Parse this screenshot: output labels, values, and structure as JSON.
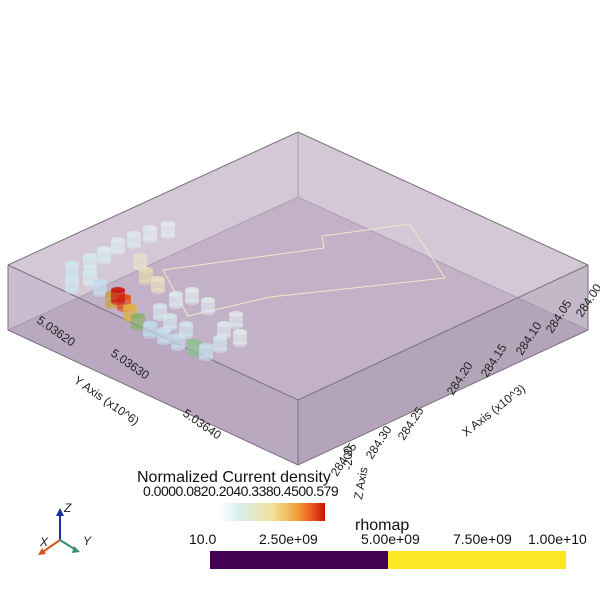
{
  "scene": {
    "background": "#ffffff",
    "box_fill": "#b49fb8",
    "box_edge": "#6a6a6a",
    "outline_color": "#f2e9c8"
  },
  "y_axis": {
    "title": "Y Axis (x10^6)",
    "ticks": [
      "5.03620",
      "5.03630",
      "5.03640"
    ]
  },
  "x_axis": {
    "title": "X Axis (x10^3)",
    "ticks": [
      "284.35",
      "284.30",
      "284.25",
      "284.20",
      "284.15",
      "284.10",
      "284.05",
      "284.00"
    ]
  },
  "z_axis": {
    "title": "Z Axis",
    "ticks": [
      "-200",
      "-600",
      "-800"
    ]
  },
  "colorbar_current": {
    "title": "Normalized Current density",
    "labels": "0.0000.0820.2040.3380.4500.579",
    "colors": [
      "#eef8f8",
      "#cfeeea",
      "#f4e09a",
      "#f2a43a",
      "#e8501c",
      "#c8100c"
    ]
  },
  "colorbar_rhomap": {
    "title": "rhomap",
    "labels": [
      "10.0",
      "2.50e+09",
      "5.00e+09",
      "7.50e+09",
      "1.00e+10"
    ],
    "colors": [
      "#440154",
      "#fde725"
    ]
  },
  "orientation_axes": {
    "x_label": "X",
    "y_label": "Y",
    "z_label": "Z",
    "x_color": "#d9541a",
    "y_color": "#3b8f6a",
    "z_color": "#1a2fa0"
  }
}
